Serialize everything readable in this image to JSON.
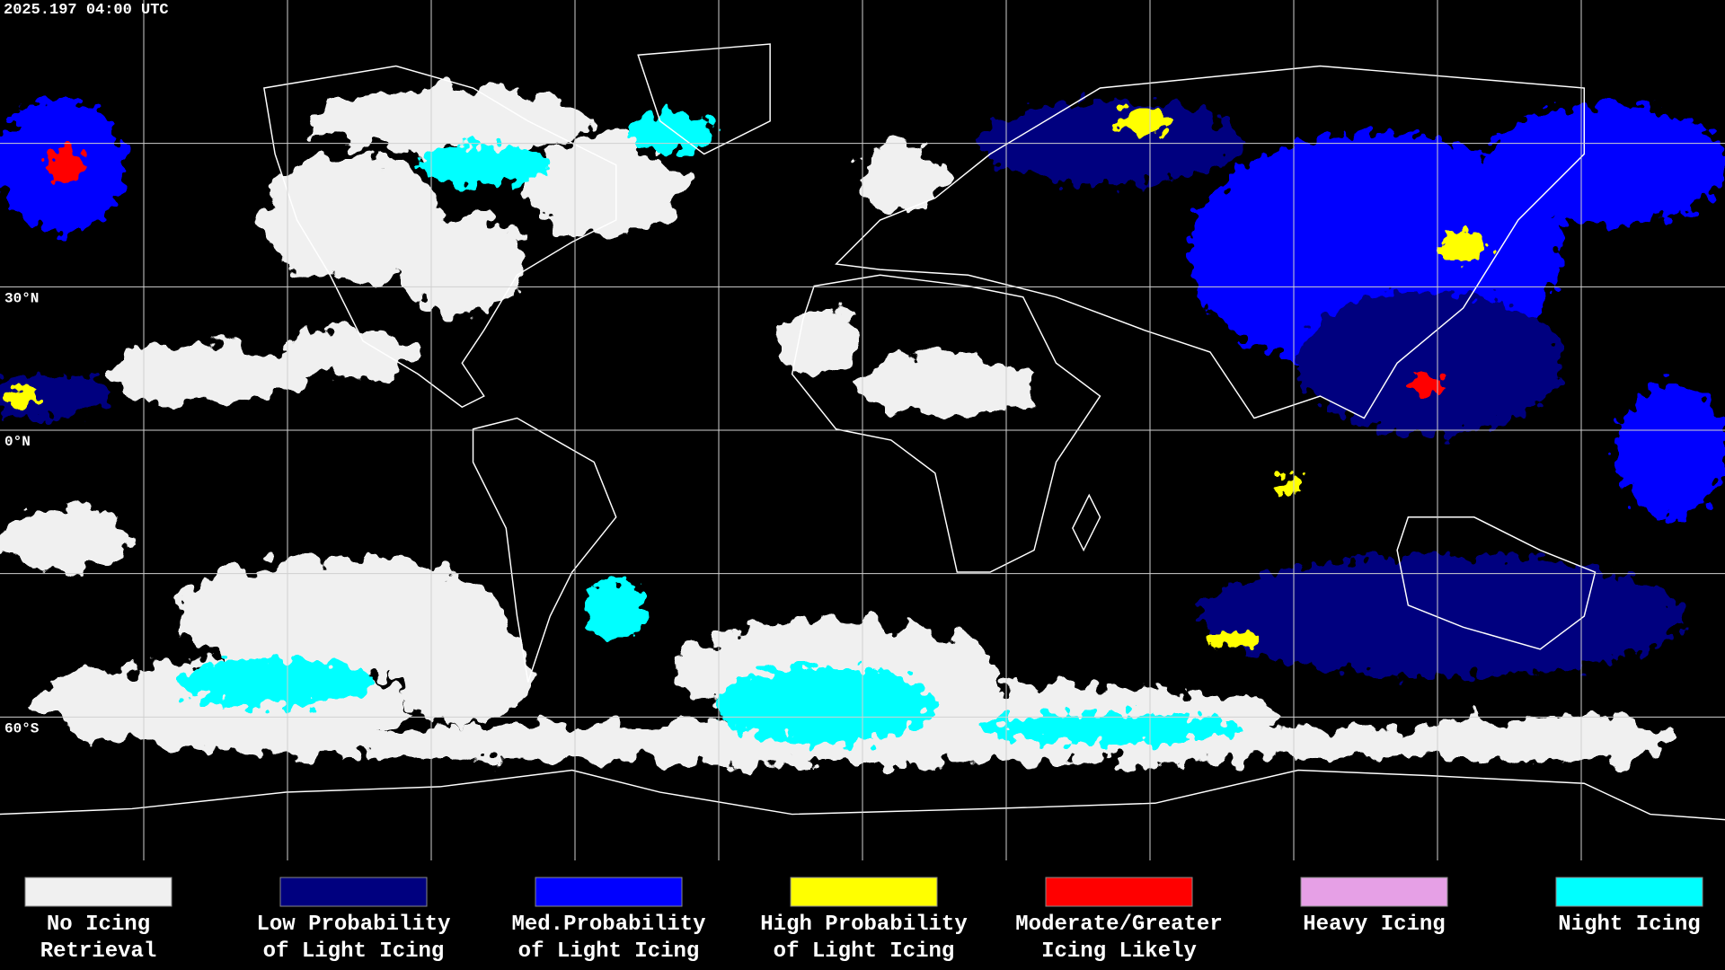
{
  "header": {
    "timestamp": "2025.197 04:00 UTC"
  },
  "map": {
    "latitude_labels": [
      "30°N",
      "0°N",
      "60°S"
    ]
  },
  "legend": {
    "items": [
      {
        "color": "#f0f0f0",
        "label": [
          "No Icing",
          "Retrieval"
        ]
      },
      {
        "color": "#00007f",
        "label": [
          "Low Probability",
          "of Light Icing"
        ]
      },
      {
        "color": "#0000ff",
        "label": [
          "Med.Probability",
          "of Light Icing"
        ]
      },
      {
        "color": "#ffff00",
        "label": [
          "High Probability",
          "of Light Icing"
        ]
      },
      {
        "color": "#ff0000",
        "label": [
          "Moderate/Greater",
          "Icing Likely"
        ]
      },
      {
        "color": "#e6a0e6",
        "label": [
          "Heavy Icing"
        ]
      },
      {
        "color": "#00ffff",
        "label": [
          "Night Icing"
        ]
      }
    ]
  }
}
